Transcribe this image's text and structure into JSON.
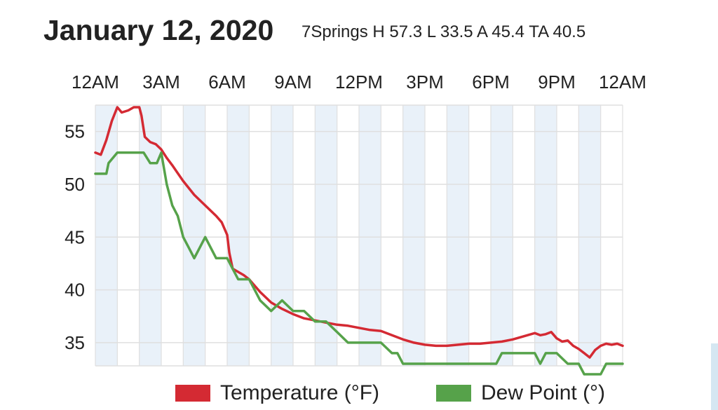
{
  "header": {
    "date": "January 12, 2020",
    "stats": "7Springs H 57.3 L 33.5 A 45.4 TA 40.5"
  },
  "colors": {
    "temperature": "#d42a33",
    "dew_point": "#56a24a",
    "shade": "#e9f1f9",
    "grid": "#dfdfdf"
  },
  "chart_data": {
    "type": "line",
    "title": "",
    "xlabel": "",
    "ylabel": "",
    "x_ticks": [
      "12AM",
      "3AM",
      "6AM",
      "9AM",
      "12PM",
      "3PM",
      "6PM",
      "9PM",
      "12AM"
    ],
    "y_ticks": [
      35,
      40,
      45,
      50,
      55
    ],
    "xlim": [
      0,
      24
    ],
    "ylim": [
      32.8,
      57.5
    ],
    "grid": true,
    "legend_position": "bottom",
    "shaded_hours": [
      [
        0,
        1
      ],
      [
        2,
        3
      ],
      [
        4,
        5
      ],
      [
        6,
        7
      ],
      [
        8,
        9
      ],
      [
        10,
        11
      ],
      [
        12,
        13
      ],
      [
        14,
        15
      ],
      [
        16,
        17
      ],
      [
        18,
        19
      ],
      [
        20,
        21
      ],
      [
        22,
        23
      ]
    ],
    "series": [
      {
        "name": "Temperature (°F)",
        "color": "#d42a33",
        "x": [
          0,
          0.25,
          0.5,
          0.75,
          1.0,
          1.2,
          1.5,
          1.75,
          2.0,
          2.1,
          2.25,
          2.5,
          2.75,
          3.0,
          3.25,
          3.5,
          4.0,
          4.5,
          5.0,
          5.5,
          5.75,
          6.0,
          6.1,
          6.25,
          6.5,
          6.75,
          7.0,
          7.5,
          8.0,
          8.5,
          9.0,
          9.5,
          10.0,
          10.5,
          11.0,
          11.5,
          12.0,
          12.5,
          13.0,
          13.5,
          14.0,
          14.5,
          15.0,
          15.5,
          16.0,
          16.5,
          17.0,
          17.5,
          18.0,
          18.5,
          19.0,
          19.5,
          20.0,
          20.25,
          20.5,
          20.75,
          21.0,
          21.25,
          21.5,
          21.75,
          22.0,
          22.25,
          22.5,
          22.75,
          23.0,
          23.25,
          23.5,
          23.75,
          24.0
        ],
        "values": [
          53,
          52.8,
          54.2,
          56,
          57.3,
          56.8,
          57.0,
          57.3,
          57.3,
          56.5,
          54.5,
          54,
          53.8,
          53.3,
          52.5,
          51.8,
          50.3,
          49,
          48.0,
          47.0,
          46.4,
          45.2,
          43.5,
          42,
          41.7,
          41.4,
          41.0,
          39.8,
          38.8,
          38.2,
          37.7,
          37.3,
          37.1,
          36.9,
          36.7,
          36.6,
          36.4,
          36.2,
          36.1,
          35.7,
          35.3,
          35.0,
          34.8,
          34.7,
          34.7,
          34.8,
          34.9,
          34.9,
          35.0,
          35.1,
          35.3,
          35.6,
          35.9,
          35.7,
          35.8,
          36.0,
          35.4,
          35.1,
          35.2,
          34.7,
          34.4,
          34.0,
          33.6,
          34.3,
          34.7,
          34.9,
          34.8,
          34.9,
          34.7
        ]
      },
      {
        "name": "Dew Point (°)",
        "color": "#56a24a",
        "x": [
          0,
          0.5,
          0.6,
          1.0,
          1.5,
          2.0,
          2.2,
          2.5,
          2.6,
          2.8,
          3.0,
          3.25,
          3.5,
          3.75,
          4.0,
          4.25,
          4.5,
          5.0,
          5.5,
          5.75,
          6.0,
          6.25,
          6.5,
          7.0,
          7.25,
          7.5,
          8.0,
          8.5,
          9.0,
          9.5,
          10.0,
          10.5,
          11.0,
          11.5,
          12.0,
          12.5,
          13.0,
          13.5,
          13.75,
          14.0,
          14.5,
          15.0,
          16.0,
          17.0,
          18.0,
          18.25,
          18.5,
          19.0,
          19.5,
          20.0,
          20.25,
          20.5,
          21.0,
          21.5,
          22.0,
          22.25,
          22.5,
          23.0,
          23.25,
          23.5,
          24.0
        ],
        "values": [
          51,
          51,
          52,
          53,
          53,
          53,
          53,
          52,
          52,
          52,
          53,
          50,
          48,
          47,
          45,
          44,
          43,
          45,
          43,
          43,
          43,
          42,
          41,
          41,
          40,
          39,
          38,
          39,
          38,
          38,
          37,
          37,
          36,
          35,
          35,
          35,
          35,
          34,
          34,
          33,
          33,
          33,
          33,
          33,
          33,
          33,
          34,
          34,
          34,
          34,
          33,
          34,
          34,
          33,
          33,
          32,
          32,
          32,
          33,
          33,
          33
        ]
      }
    ]
  }
}
